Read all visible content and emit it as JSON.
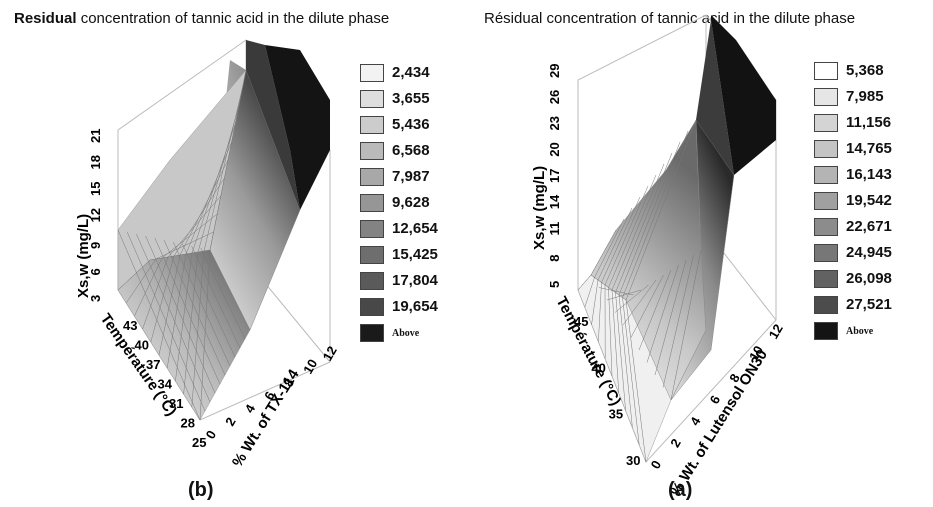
{
  "chart_data": [
    {
      "type": "surface",
      "panel_label": "(b)",
      "title_bold": "Residual",
      "title_rest": " concentration of tannic acid in the dilute phase",
      "zlabel": "Xs,w (mg/L)",
      "ylabel": "Température (°C)",
      "xlabel": "% Wt. of TX-114",
      "z_ticks": [
        "21",
        "18",
        "15",
        "12",
        "9",
        "6",
        "3"
      ],
      "y_ticks": [
        "43",
        "40",
        "37",
        "34",
        "31",
        "28",
        "25"
      ],
      "x_ticks": [
        "0",
        "2",
        "4",
        "6",
        "8",
        "10",
        "12"
      ],
      "legend": [
        {
          "label": "2,434",
          "color": "#f2f2f2"
        },
        {
          "label": "3,655",
          "color": "#dedede"
        },
        {
          "label": "5,436",
          "color": "#cccccc"
        },
        {
          "label": "6,568",
          "color": "#bababa"
        },
        {
          "label": "7,987",
          "color": "#a8a8a8"
        },
        {
          "label": "9,628",
          "color": "#969696"
        },
        {
          "label": "12,654",
          "color": "#838383"
        },
        {
          "label": "15,425",
          "color": "#6e6e6e"
        },
        {
          "label": "17,804",
          "color": "#5a5a5a"
        },
        {
          "label": "19,654",
          "color": "#484848"
        },
        {
          "label": "Above",
          "color": "#1a1a1a"
        }
      ]
    },
    {
      "type": "surface",
      "panel_label": "(a)",
      "title_bold": "",
      "title_rest": "Résidual concentration of tannic acid in the dilute phase",
      "zlabel": "Xs,w (mg/L)",
      "ylabel": "Température (°C)",
      "xlabel": "% Wt. of Lutensol ON30",
      "z_ticks": [
        "29",
        "26",
        "23",
        "20",
        "17",
        "14",
        "11",
        "8",
        "5"
      ],
      "y_ticks": [
        "45",
        "40",
        "35",
        "30"
      ],
      "x_ticks": [
        "0",
        "2",
        "4",
        "6",
        "8",
        "10",
        "12"
      ],
      "legend": [
        {
          "label": "5,368",
          "color": "#ffffff"
        },
        {
          "label": "7,985",
          "color": "#e6e6e6"
        },
        {
          "label": "11,156",
          "color": "#d4d4d4"
        },
        {
          "label": "14,765",
          "color": "#c4c4c4"
        },
        {
          "label": "16,143",
          "color": "#b4b4b4"
        },
        {
          "label": "19,542",
          "color": "#a0a0a0"
        },
        {
          "label": "22,671",
          "color": "#8c8c8c"
        },
        {
          "label": "24,945",
          "color": "#777777"
        },
        {
          "label": "26,098",
          "color": "#626262"
        },
        {
          "label": "27,521",
          "color": "#4c4c4c"
        },
        {
          "label": "Above",
          "color": "#141414"
        }
      ]
    }
  ]
}
